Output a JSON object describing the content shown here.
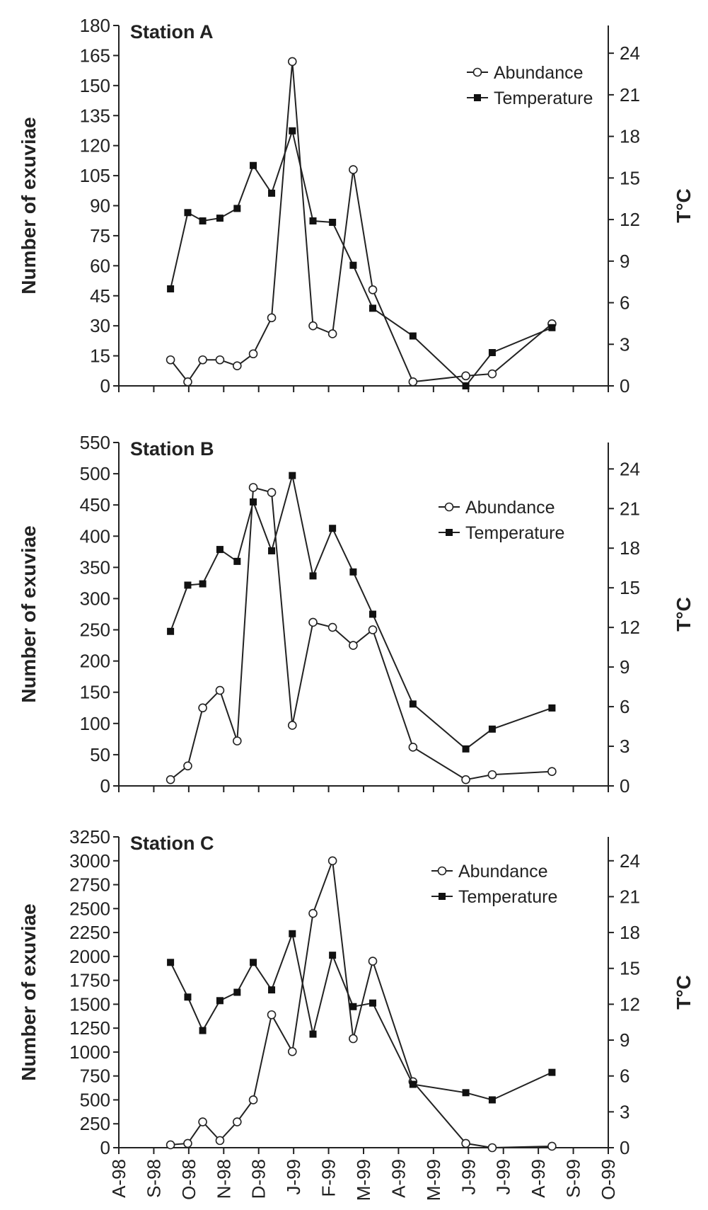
{
  "chart_data": [
    {
      "type": "line",
      "title": "Station A",
      "ylabel": "Number of exuviae",
      "y2label": "T°C",
      "ylim": [
        0,
        180
      ],
      "yticks": [
        0,
        15,
        30,
        45,
        60,
        75,
        90,
        105,
        120,
        135,
        150,
        165,
        180
      ],
      "y2lim": [
        0,
        26
      ],
      "y2ticks": [
        0,
        3,
        6,
        9,
        12,
        15,
        18,
        21,
        24
      ],
      "legend": {
        "placement": "top-right",
        "entries": [
          "Abundance",
          "Temperature"
        ]
      },
      "grid": false,
      "series": [
        {
          "name": "Abundance",
          "axis": "left",
          "marker": "open-circle",
          "points": [
            {
              "x": "1998-09-15",
              "y": 13
            },
            {
              "x": "1998-09-30",
              "y": 2
            },
            {
              "x": "1998-10-13",
              "y": 13
            },
            {
              "x": "1998-10-28",
              "y": 13
            },
            {
              "x": "1998-11-12",
              "y": 10
            },
            {
              "x": "1998-11-26",
              "y": 16
            },
            {
              "x": "1998-12-12",
              "y": 34
            },
            {
              "x": "1998-12-30",
              "y": 162
            },
            {
              "x": "1999-01-17",
              "y": 30
            },
            {
              "x": "1999-02-03",
              "y": 26
            },
            {
              "x": "1999-02-21",
              "y": 108
            },
            {
              "x": "1999-03-10",
              "y": 48
            },
            {
              "x": "1999-04-14",
              "y": 2
            },
            {
              "x": "1999-05-30",
              "y": 5
            },
            {
              "x": "1999-06-22",
              "y": 6
            },
            {
              "x": "1999-08-13",
              "y": 31
            }
          ]
        },
        {
          "name": "Temperature",
          "axis": "right",
          "marker": "filled-square",
          "points": [
            {
              "x": "1998-09-15",
              "y": 7.0
            },
            {
              "x": "1998-09-30",
              "y": 12.5
            },
            {
              "x": "1998-10-13",
              "y": 11.9
            },
            {
              "x": "1998-10-28",
              "y": 12.1
            },
            {
              "x": "1998-11-12",
              "y": 12.8
            },
            {
              "x": "1998-11-26",
              "y": 15.9
            },
            {
              "x": "1998-12-12",
              "y": 13.9
            },
            {
              "x": "1998-12-30",
              "y": 18.4
            },
            {
              "x": "1999-01-17",
              "y": 11.9
            },
            {
              "x": "1999-02-03",
              "y": 11.8
            },
            {
              "x": "1999-02-21",
              "y": 8.7
            },
            {
              "x": "1999-03-10",
              "y": 5.6
            },
            {
              "x": "1999-04-14",
              "y": 3.6
            },
            {
              "x": "1999-05-30",
              "y": 0
            },
            {
              "x": "1999-06-22",
              "y": 2.4
            },
            {
              "x": "1999-08-13",
              "y": 4.2
            }
          ]
        }
      ]
    },
    {
      "type": "line",
      "title": "Station B",
      "ylabel": "Number of exuviae",
      "y2label": "T°C",
      "ylim": [
        0,
        550
      ],
      "yticks": [
        0,
        50,
        100,
        150,
        200,
        250,
        300,
        350,
        400,
        450,
        500,
        550
      ],
      "y2lim": [
        0,
        26
      ],
      "y2ticks": [
        0,
        3,
        6,
        9,
        12,
        15,
        18,
        21,
        24
      ],
      "legend": {
        "placement": "top-right",
        "entries": [
          "Abundance",
          "Temperature"
        ]
      },
      "grid": false,
      "series": [
        {
          "name": "Abundance",
          "axis": "left",
          "marker": "open-circle",
          "points": [
            {
              "x": "1998-09-15",
              "y": 10
            },
            {
              "x": "1998-09-30",
              "y": 32
            },
            {
              "x": "1998-10-13",
              "y": 125
            },
            {
              "x": "1998-10-28",
              "y": 153
            },
            {
              "x": "1998-11-12",
              "y": 72
            },
            {
              "x": "1998-11-26",
              "y": 478
            },
            {
              "x": "1998-12-12",
              "y": 470
            },
            {
              "x": "1998-12-30",
              "y": 97
            },
            {
              "x": "1999-01-17",
              "y": 262
            },
            {
              "x": "1999-02-03",
              "y": 254
            },
            {
              "x": "1999-02-21",
              "y": 225
            },
            {
              "x": "1999-03-10",
              "y": 250
            },
            {
              "x": "1999-04-14",
              "y": 62
            },
            {
              "x": "1999-05-30",
              "y": 10
            },
            {
              "x": "1999-06-22",
              "y": 18
            },
            {
              "x": "1999-08-13",
              "y": 23
            }
          ]
        },
        {
          "name": "Temperature",
          "axis": "right",
          "marker": "filled-square",
          "points": [
            {
              "x": "1998-09-15",
              "y": 11.7
            },
            {
              "x": "1998-09-30",
              "y": 15.2
            },
            {
              "x": "1998-10-13",
              "y": 15.3
            },
            {
              "x": "1998-10-28",
              "y": 17.9
            },
            {
              "x": "1998-11-12",
              "y": 17.0
            },
            {
              "x": "1998-11-26",
              "y": 21.5
            },
            {
              "x": "1998-12-12",
              "y": 17.8
            },
            {
              "x": "1998-12-30",
              "y": 23.5
            },
            {
              "x": "1999-01-17",
              "y": 15.9
            },
            {
              "x": "1999-02-03",
              "y": 19.5
            },
            {
              "x": "1999-02-21",
              "y": 16.2
            },
            {
              "x": "1999-03-10",
              "y": 13.0
            },
            {
              "x": "1999-04-14",
              "y": 6.2
            },
            {
              "x": "1999-05-30",
              "y": 2.8
            },
            {
              "x": "1999-06-22",
              "y": 4.3
            },
            {
              "x": "1999-08-13",
              "y": 5.9
            }
          ]
        }
      ]
    },
    {
      "type": "line",
      "title": "Station C",
      "ylabel": "Number of exuviae",
      "y2label": "T°C",
      "xlabel": "",
      "xtick_labels": [
        "A-98",
        "S-98",
        "O-98",
        "N-98",
        "D-98",
        "J-99",
        "F-99",
        "M-99",
        "A-99",
        "M-99",
        "J-99",
        "J-99",
        "A-99",
        "S-99",
        "O-99"
      ],
      "xlim": [
        "1998-08-01",
        "1999-10-01"
      ],
      "ylim": [
        0,
        3250
      ],
      "yticks": [
        0,
        250,
        500,
        750,
        1000,
        1250,
        1500,
        1750,
        2000,
        2250,
        2500,
        2750,
        3000,
        3250
      ],
      "y2lim": [
        0,
        26
      ],
      "y2ticks": [
        0,
        3,
        6,
        9,
        12,
        15,
        18,
        21,
        24
      ],
      "legend": {
        "placement": "top-right",
        "entries": [
          "Abundance",
          "Temperature"
        ]
      },
      "grid": false,
      "series": [
        {
          "name": "Abundance",
          "axis": "left",
          "marker": "open-circle",
          "points": [
            {
              "x": "1998-09-15",
              "y": 30
            },
            {
              "x": "1998-09-30",
              "y": 45
            },
            {
              "x": "1998-10-13",
              "y": 270
            },
            {
              "x": "1998-10-28",
              "y": 75
            },
            {
              "x": "1998-11-12",
              "y": 270
            },
            {
              "x": "1998-11-26",
              "y": 500
            },
            {
              "x": "1998-12-12",
              "y": 1390
            },
            {
              "x": "1998-12-30",
              "y": 1005
            },
            {
              "x": "1999-01-17",
              "y": 2450
            },
            {
              "x": "1999-02-03",
              "y": 3000
            },
            {
              "x": "1999-02-21",
              "y": 1140
            },
            {
              "x": "1999-03-10",
              "y": 1950
            },
            {
              "x": "1999-04-14",
              "y": 690
            },
            {
              "x": "1999-05-30",
              "y": 45
            },
            {
              "x": "1999-06-22",
              "y": 0
            },
            {
              "x": "1999-08-13",
              "y": 15
            }
          ]
        },
        {
          "name": "Temperature",
          "axis": "right",
          "marker": "filled-square",
          "points": [
            {
              "x": "1998-09-15",
              "y": 15.5
            },
            {
              "x": "1998-09-30",
              "y": 12.6
            },
            {
              "x": "1998-10-13",
              "y": 9.8
            },
            {
              "x": "1998-10-28",
              "y": 12.3
            },
            {
              "x": "1998-11-12",
              "y": 13.0
            },
            {
              "x": "1998-11-26",
              "y": 15.5
            },
            {
              "x": "1998-12-12",
              "y": 13.2
            },
            {
              "x": "1998-12-30",
              "y": 17.9
            },
            {
              "x": "1999-01-17",
              "y": 9.5
            },
            {
              "x": "1999-02-03",
              "y": 16.1
            },
            {
              "x": "1999-02-21",
              "y": 11.8
            },
            {
              "x": "1999-03-10",
              "y": 12.1
            },
            {
              "x": "1999-04-14",
              "y": 5.3
            },
            {
              "x": "1999-05-30",
              "y": 4.6
            },
            {
              "x": "1999-06-22",
              "y": 4.0
            },
            {
              "x": "1999-08-13",
              "y": 6.3
            }
          ]
        }
      ]
    }
  ]
}
